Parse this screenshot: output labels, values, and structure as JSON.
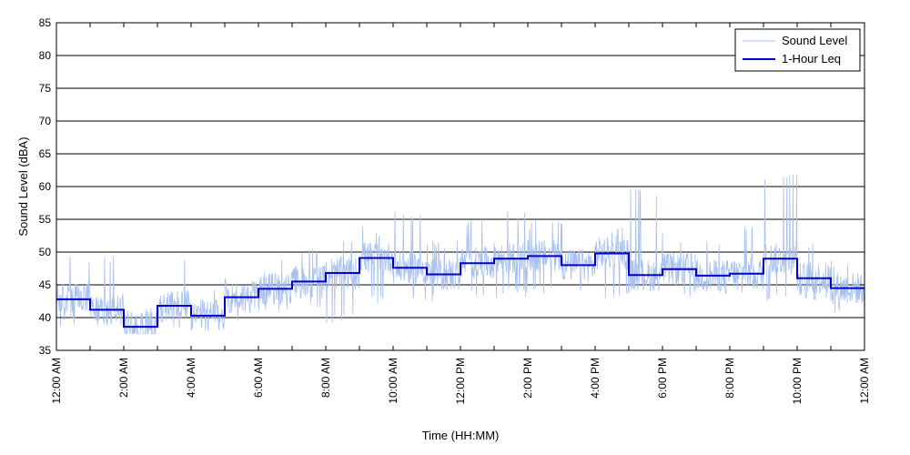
{
  "chart_data": {
    "type": "line",
    "xlabel": "Time (HH:MM)",
    "ylabel": "Sound Level (dBA)",
    "ylim": [
      35,
      85
    ],
    "yticks": [
      35,
      40,
      45,
      50,
      55,
      60,
      65,
      70,
      75,
      80,
      85
    ],
    "xlim_hours": [
      0,
      24
    ],
    "xtick_labels": [
      "12:00 AM",
      "2:00 AM",
      "4:00 AM",
      "6:00 AM",
      "8:00 AM",
      "10:00 AM",
      "12:00 PM",
      "2:00 PM",
      "4:00 PM",
      "6:00 PM",
      "8:00 PM",
      "10:00 PM",
      "12:00 AM"
    ],
    "grid": "horizontal",
    "legend_position": "top-right",
    "series": [
      {
        "name": "Sound Level",
        "style": "thin-line",
        "color": "#a8c0ee",
        "approx_hourly_range": [
          [
            38.5,
            49.5
          ],
          [
            38.5,
            49.5
          ],
          [
            37.5,
            41.5
          ],
          [
            37.5,
            49.5
          ],
          [
            38.0,
            44.5
          ],
          [
            39.0,
            46.5
          ],
          [
            41.0,
            49.0
          ],
          [
            41.5,
            51.0
          ],
          [
            39.0,
            52.0
          ],
          [
            42.0,
            54.0
          ],
          [
            42.0,
            56.5
          ],
          [
            42.0,
            52.0
          ],
          [
            43.0,
            55.0
          ],
          [
            43.0,
            56.5
          ],
          [
            43.5,
            55.0
          ],
          [
            44.0,
            55.0
          ],
          [
            42.5,
            54.0
          ],
          [
            43.5,
            60.0
          ],
          [
            42.5,
            53.0
          ],
          [
            42.5,
            52.5
          ],
          [
            43.0,
            54.0
          ],
          [
            42.5,
            62.0
          ],
          [
            42.0,
            52.0
          ],
          [
            40.5,
            49.0
          ]
        ]
      },
      {
        "name": "1-Hour Leq",
        "style": "step",
        "color": "#0000cc",
        "hourly_values": [
          42.8,
          41.2,
          38.6,
          41.8,
          40.3,
          43.1,
          44.4,
          45.5,
          46.8,
          49.1,
          47.6,
          46.6,
          48.3,
          49.0,
          49.4,
          48.0,
          49.8,
          46.5,
          47.4,
          46.4,
          46.7,
          49.0,
          46.0,
          44.5
        ]
      }
    ]
  }
}
